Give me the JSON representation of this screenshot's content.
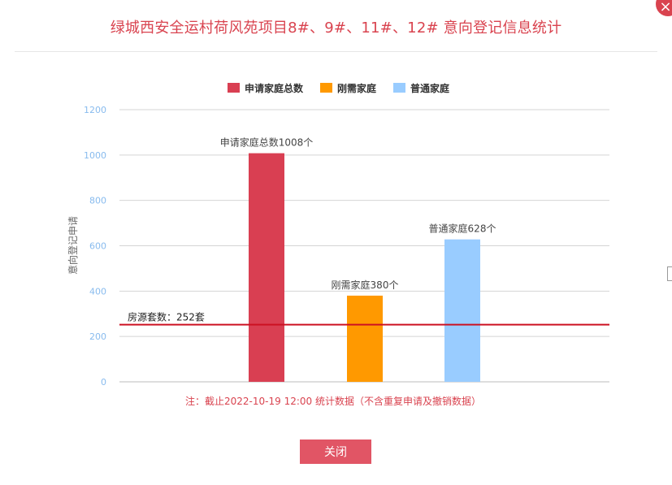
{
  "dialog": {
    "title": "绿城西安全运村荷风苑项目8#、9#、11#、12# 意向登记信息统计",
    "close_icon": "×",
    "close_button_label": "关闭"
  },
  "colors": {
    "accent": "#d9434f",
    "bar_total": "#d93f52",
    "bar_rigid": "#ff9900",
    "bar_ordinary": "#99ccff",
    "reference_line": "#cc1122",
    "note": "#d9434f",
    "axis_tick": "#88bbee"
  },
  "chart_data": {
    "type": "bar",
    "title": "",
    "ylabel": "意向登记申请",
    "xlabel": "",
    "ylim": [
      0,
      1200
    ],
    "yticks": [
      "0",
      "200",
      "400",
      "600",
      "800",
      "1000",
      "1200"
    ],
    "grid": true,
    "legend_position": "top",
    "series": [
      {
        "name": "申请家庭总数",
        "value": 1008,
        "label": "申请家庭总数1008个",
        "color": "#d93f52"
      },
      {
        "name": "刚需家庭",
        "value": 380,
        "label": "刚需家庭380个",
        "color": "#ff9900"
      },
      {
        "name": "普通家庭",
        "value": 628,
        "label": "普通家庭628个",
        "color": "#99ccff"
      }
    ],
    "reference_line": {
      "value": 252,
      "label": "房源套数：252套",
      "color": "#cc1122"
    },
    "note": "注：截止2022-10-19 12:00 统计数据（不含重复申请及撤销数据）"
  }
}
